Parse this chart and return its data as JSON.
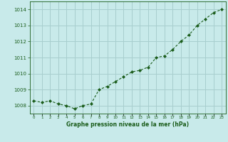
{
  "x": [
    0,
    1,
    2,
    3,
    4,
    5,
    6,
    7,
    8,
    9,
    10,
    11,
    12,
    13,
    14,
    15,
    16,
    17,
    18,
    19,
    20,
    21,
    22,
    23
  ],
  "y": [
    1008.3,
    1008.2,
    1008.3,
    1008.1,
    1008.0,
    1007.8,
    1008.0,
    1008.1,
    1009.0,
    1009.2,
    1009.5,
    1009.8,
    1010.1,
    1010.2,
    1010.4,
    1011.0,
    1011.1,
    1011.5,
    1012.0,
    1012.4,
    1013.0,
    1013.4,
    1013.8,
    1014.0
  ],
  "background_color": "#c8eaea",
  "plot_bg_color": "#c8eaea",
  "line_color": "#1a5c1a",
  "marker_color": "#1a5c1a",
  "grid_color": "#a8cece",
  "tick_label_color": "#1a5c1a",
  "xlabel": "Graphe pression niveau de la mer (hPa)",
  "xlabel_color": "#1a5c1a",
  "yticks": [
    1008,
    1009,
    1010,
    1011,
    1012,
    1013,
    1014
  ],
  "ylim": [
    1007.5,
    1014.5
  ],
  "xlim": [
    -0.5,
    23.5
  ],
  "xticks": [
    0,
    1,
    2,
    3,
    4,
    5,
    6,
    7,
    8,
    9,
    10,
    11,
    12,
    13,
    14,
    15,
    16,
    17,
    18,
    19,
    20,
    21,
    22,
    23
  ]
}
